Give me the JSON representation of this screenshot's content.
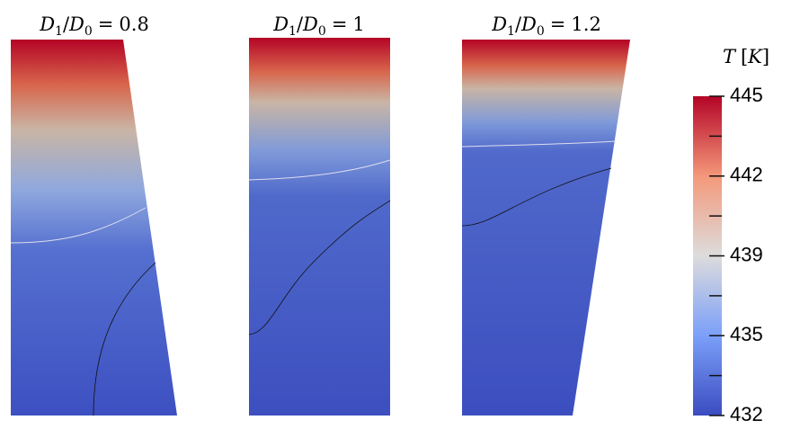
{
  "ratio_label": {
    "symbol1": "D",
    "sub1": "1",
    "symbol2": "D",
    "sub2": "0"
  },
  "panels": [
    {
      "value": "0.8"
    },
    {
      "value": "1"
    },
    {
      "value": "1.2"
    }
  ],
  "colorbar": {
    "title_symbol": "T",
    "unit": "K",
    "range": [
      432,
      445
    ],
    "ticks": [
      445,
      {
        "value": 441.75,
        "label": "442"
      },
      {
        "value": 438.5,
        "label": "439"
      },
      {
        "value": 435.25,
        "label": "435"
      },
      432
    ],
    "minor_ticks": [
      443.375,
      440.125,
      436.875,
      433.625
    ]
  }
}
